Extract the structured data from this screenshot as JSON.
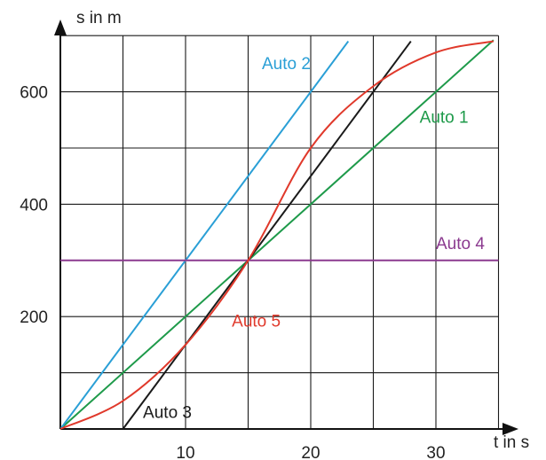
{
  "chart_data": {
    "type": "line",
    "title": "",
    "xlabel": "t in s",
    "ylabel": "s in m",
    "xlim": [
      0,
      35
    ],
    "ylim": [
      0,
      700
    ],
    "grid": true,
    "x_grid_step": 5,
    "y_grid_step": 100,
    "x_ticks": [
      10,
      20,
      30
    ],
    "y_ticks": [
      200,
      400,
      600
    ],
    "series": [
      {
        "name": "Auto 1",
        "color": "#1e9a4a",
        "x": [
          0,
          34.6
        ],
        "y": [
          0,
          692
        ]
      },
      {
        "name": "Auto 2",
        "color": "#2a9fd6",
        "x": [
          0,
          23
        ],
        "y": [
          0,
          690
        ]
      },
      {
        "name": "Auto 3",
        "color": "#1a1a1a",
        "x": [
          5,
          28
        ],
        "y": [
          0,
          690
        ]
      },
      {
        "name": "Auto 4",
        "color": "#8b3a8f",
        "x": [
          0,
          35
        ],
        "y": [
          300,
          300
        ]
      },
      {
        "name": "Auto 5",
        "color": "#e0392b",
        "x": [
          0,
          5,
          10,
          15,
          20,
          25,
          30,
          34.6
        ],
        "y": [
          0,
          50,
          150,
          300,
          500,
          610,
          670,
          690
        ]
      }
    ]
  }
}
